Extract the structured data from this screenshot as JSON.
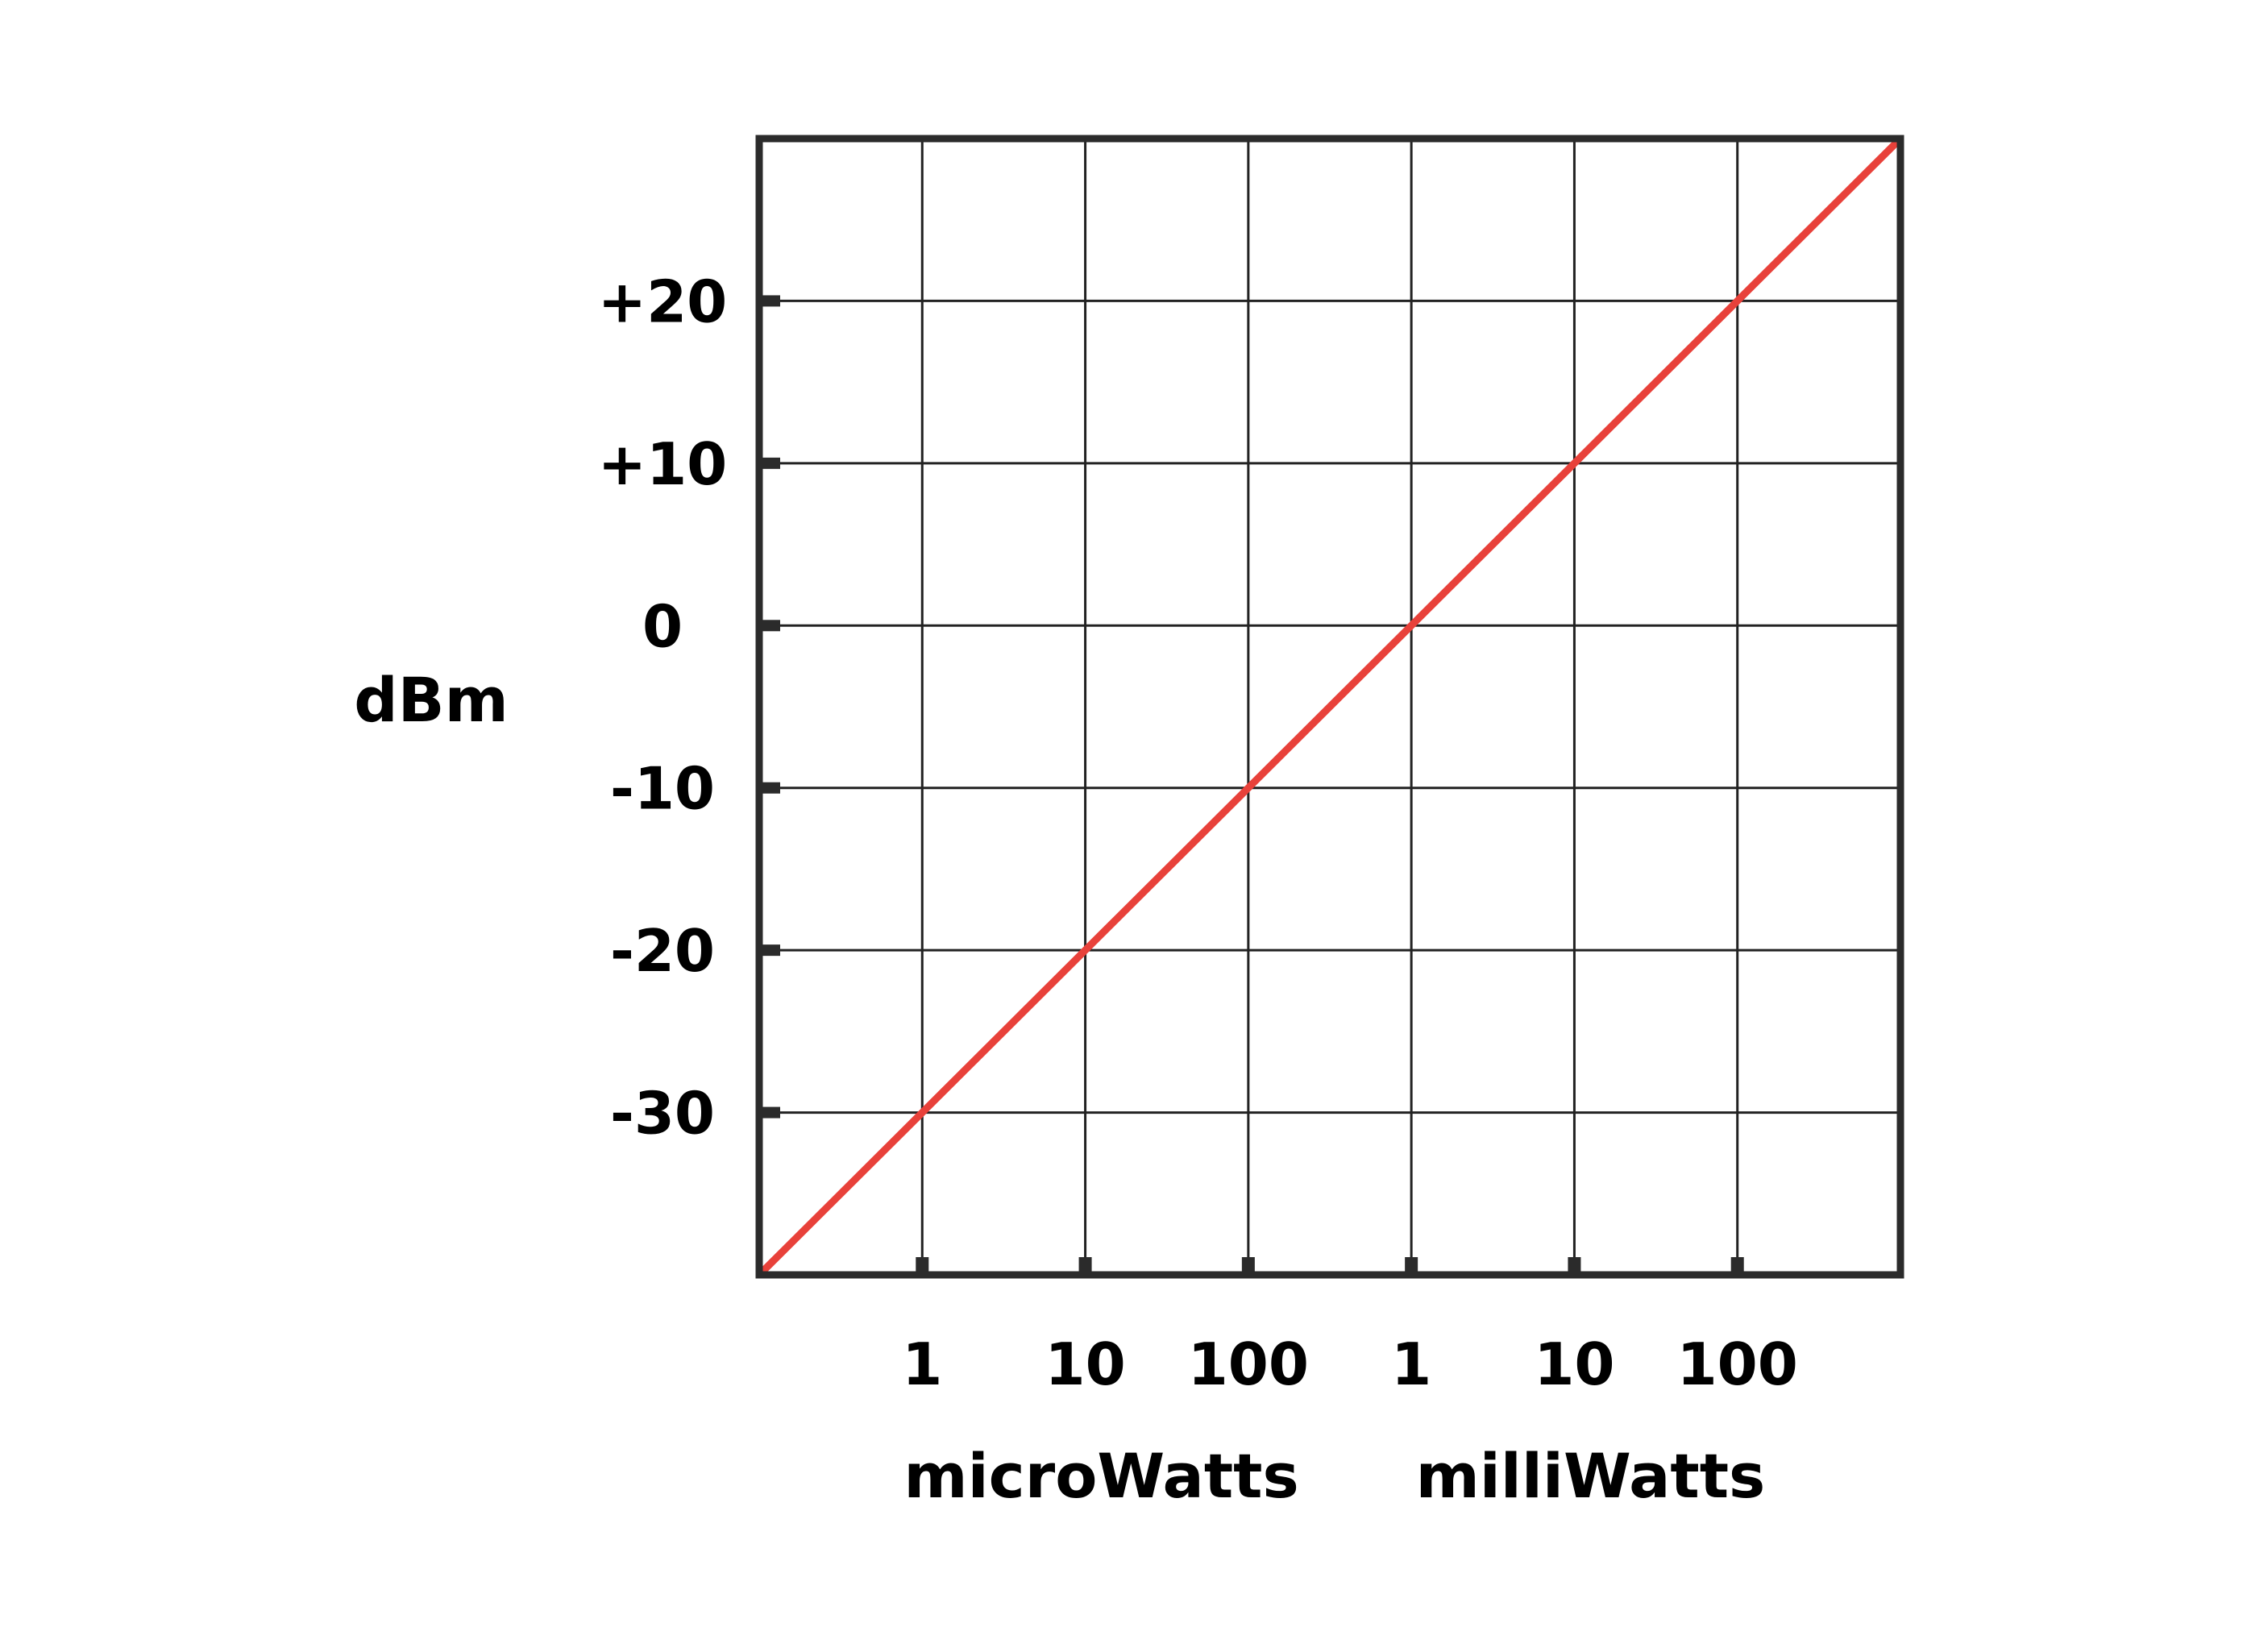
{
  "chart_data": {
    "type": "line",
    "title": "",
    "ylabel": "dBm",
    "x_unit_groups": [
      {
        "label": "microWatts",
        "ticks": [
          "1",
          "10",
          "100"
        ]
      },
      {
        "label": "milliWatts",
        "ticks": [
          "1",
          "10",
          "100"
        ]
      }
    ],
    "x_scale": "log",
    "xlim_mW": [
      0.0001,
      1000
    ],
    "ylim": [
      -40,
      30
    ],
    "y_ticks": [
      {
        "value": 20,
        "label": "+20"
      },
      {
        "value": 10,
        "label": "+10"
      },
      {
        "value": 0,
        "label": "0"
      },
      {
        "value": -10,
        "label": "-10"
      },
      {
        "value": -20,
        "label": "-20"
      },
      {
        "value": -30,
        "label": "-30"
      }
    ],
    "series": [
      {
        "x_mW": [
          0.0001,
          0.001,
          0.01,
          0.1,
          1,
          10,
          100,
          1000
        ],
        "y": [
          -40,
          -30,
          -20,
          -10,
          0,
          10,
          20,
          30
        ],
        "color": "#e8413a"
      }
    ],
    "grid": true,
    "frame_color": "#2b2b2b",
    "grid_color": "#222222"
  }
}
